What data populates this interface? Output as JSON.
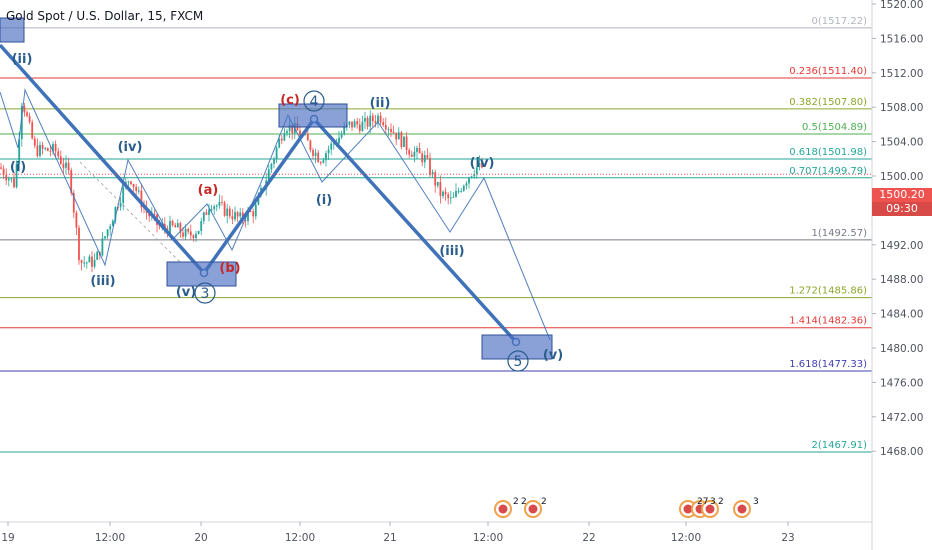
{
  "header": {
    "title": "Gold Spot / U.S. Dollar, 15, FXCM"
  },
  "current_price": {
    "value": "1500.20",
    "countdown": "09:30"
  },
  "colors": {
    "up": "#26a69a",
    "down": "#ef5350",
    "wave": "#3f72b8",
    "box_fill": "#4a6fc1",
    "fib_0": "#b2b5be",
    "fib_236": "#e53935",
    "fib_382": "#8ba62d",
    "fib_5": "#4caf50",
    "fib_618": "#26a69a",
    "fib_707": "#26a69a",
    "fib_1": "#787b86",
    "fib_1272": "#8ba62d",
    "fib_1414": "#e53935",
    "fib_1618": "#3f3fb5",
    "fib_2": "#26a69a"
  },
  "chart_data": {
    "type": "candlestick",
    "ylim": [
      1465,
      1521
    ],
    "y_ticks": [
      "1520.00",
      "1516.00",
      "1512.00",
      "1508.00",
      "1504.00",
      "1500.00",
      "1496.00",
      "1492.00",
      "1488.00",
      "1484.00",
      "1480.00",
      "1476.00",
      "1472.00",
      "1468.00"
    ],
    "x_ticks": [
      "19",
      "12:00",
      "20",
      "12:00",
      "21",
      "12:00",
      "22",
      "12:00",
      "23"
    ],
    "fib_levels": [
      {
        "ratio": "0",
        "price": 1517.22,
        "label": "0(1517.22)",
        "color_key": "fib_0"
      },
      {
        "ratio": "0.236",
        "price": 1511.4,
        "label": "0.236(1511.40)",
        "color_key": "fib_236"
      },
      {
        "ratio": "0.382",
        "price": 1507.8,
        "label": "0.382(1507.80)",
        "color_key": "fib_382"
      },
      {
        "ratio": "0.5",
        "price": 1504.89,
        "label": "0.5(1504.89)",
        "color_key": "fib_5"
      },
      {
        "ratio": "0.618",
        "price": 1501.98,
        "label": "0.618(1501.98)",
        "color_key": "fib_618"
      },
      {
        "ratio": "0.707",
        "price": 1499.79,
        "label": "0.707(1499.79)",
        "color_key": "fib_707"
      },
      {
        "ratio": "1",
        "price": 1492.57,
        "label": "1(1492.57)",
        "color_key": "fib_1"
      },
      {
        "ratio": "1.272",
        "price": 1485.86,
        "label": "1.272(1485.86)",
        "color_key": "fib_1272"
      },
      {
        "ratio": "1.414",
        "price": 1482.36,
        "label": "1.414(1482.36)",
        "color_key": "fib_1414"
      },
      {
        "ratio": "1.618",
        "price": 1477.33,
        "label": "1.618(1477.33)",
        "color_key": "fib_1618"
      },
      {
        "ratio": "2",
        "price": 1467.91,
        "label": "2(1467.91)",
        "color_key": "fib_2"
      }
    ],
    "wave_labels": [
      {
        "text": "(ii)",
        "color": "#2a5d8c"
      },
      {
        "text": "(i)",
        "color": "#2a5d8c"
      },
      {
        "text": "(iv)",
        "color": "#2a5d8c"
      },
      {
        "text": "(iii)",
        "color": "#2a5d8c"
      },
      {
        "text": "(a)",
        "color": "#c62828"
      },
      {
        "text": "(v)",
        "color": "#2a5d8c"
      },
      {
        "text": "(b)",
        "color": "#c62828"
      },
      {
        "text": "(c)",
        "color": "#c62828"
      },
      {
        "text": "(i)",
        "color": "#2a5d8c"
      },
      {
        "text": "(ii)",
        "color": "#2a5d8c"
      },
      {
        "text": "(iii)",
        "color": "#2a5d8c"
      },
      {
        "text": "(iv)",
        "color": "#2a5d8c"
      },
      {
        "text": "(v)",
        "color": "#2a5d8c"
      }
    ],
    "circled_labels": [
      "3",
      "4",
      "5"
    ],
    "event_badges": [
      "2",
      "2",
      "2",
      "27",
      "3",
      "2",
      "3"
    ]
  }
}
